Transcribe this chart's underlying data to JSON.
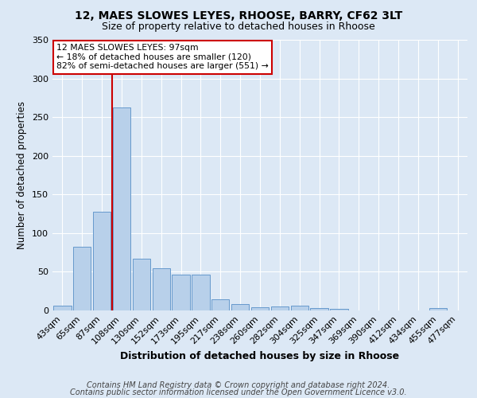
{
  "title1": "12, MAES SLOWES LEYES, RHOOSE, BARRY, CF62 3LT",
  "title2": "Size of property relative to detached houses in Rhoose",
  "xlabel": "Distribution of detached houses by size in Rhoose",
  "ylabel": "Number of detached properties",
  "categories": [
    "43sqm",
    "65sqm",
    "87sqm",
    "108sqm",
    "130sqm",
    "152sqm",
    "173sqm",
    "195sqm",
    "217sqm",
    "238sqm",
    "260sqm",
    "282sqm",
    "304sqm",
    "325sqm",
    "347sqm",
    "369sqm",
    "390sqm",
    "412sqm",
    "434sqm",
    "455sqm",
    "477sqm"
  ],
  "values": [
    6,
    82,
    128,
    262,
    67,
    55,
    46,
    46,
    14,
    8,
    4,
    5,
    6,
    3,
    2,
    0,
    0,
    0,
    0,
    3,
    0
  ],
  "bar_color": "#b8d0ea",
  "bar_edge_color": "#6699cc",
  "vline_color": "#cc0000",
  "annotation_text": "12 MAES SLOWES LEYES: 97sqm\n← 18% of detached houses are smaller (120)\n82% of semi-detached houses are larger (551) →",
  "annotation_box_color": "white",
  "annotation_box_edge_color": "#cc0000",
  "ylim": [
    0,
    350
  ],
  "yticks": [
    0,
    50,
    100,
    150,
    200,
    250,
    300,
    350
  ],
  "footnote1": "Contains HM Land Registry data © Crown copyright and database right 2024.",
  "footnote2": "Contains public sector information licensed under the Open Government Licence v3.0.",
  "bg_color": "#dce8f5",
  "grid_color": "white",
  "title1_fontsize": 10,
  "title2_fontsize": 9,
  "xlabel_fontsize": 9,
  "ylabel_fontsize": 8.5,
  "tick_fontsize": 8,
  "footnote_fontsize": 7
}
